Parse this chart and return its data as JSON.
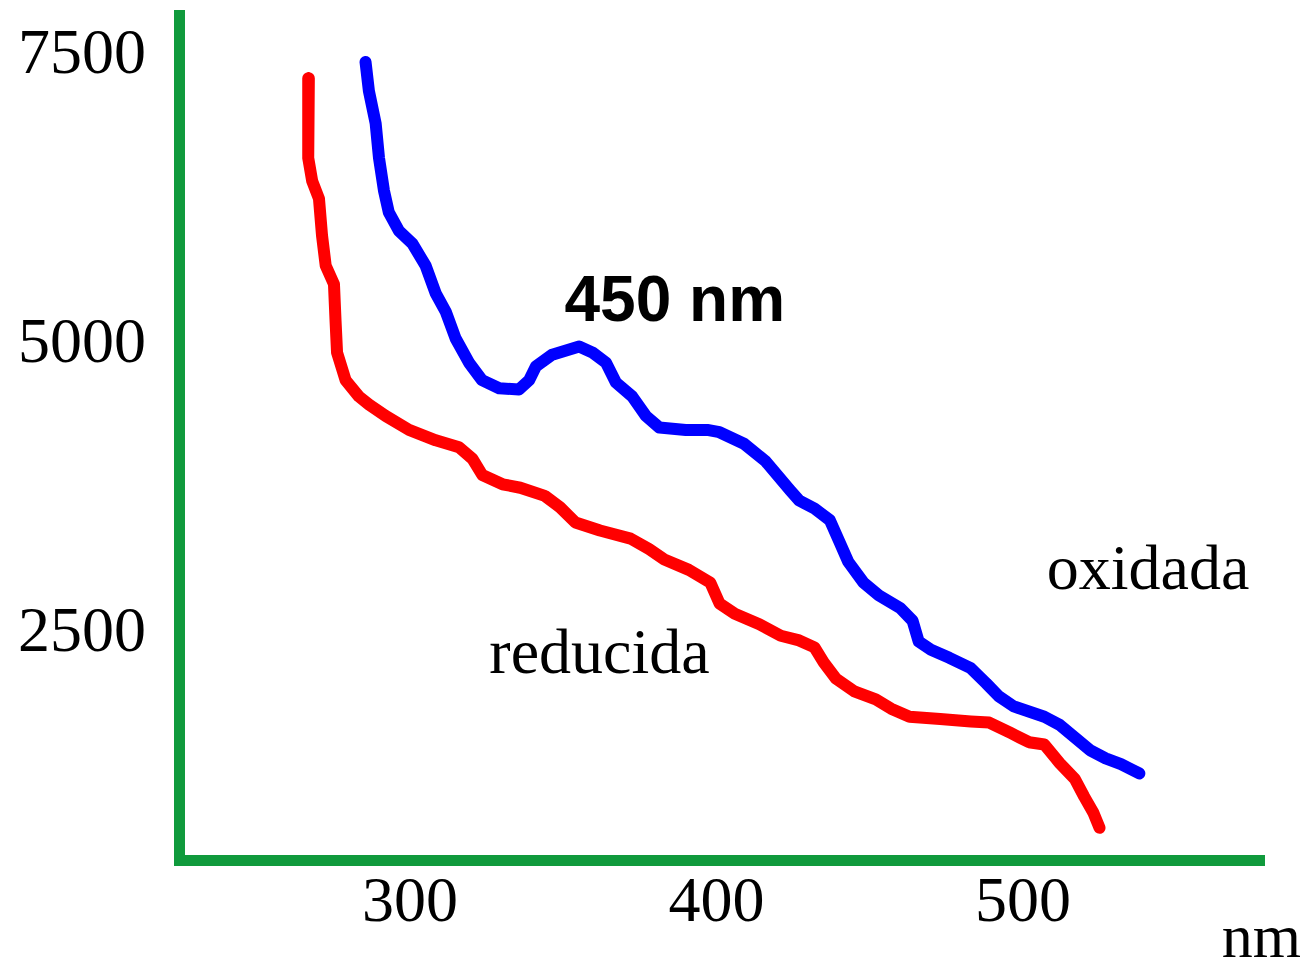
{
  "chart_data": {
    "type": "line",
    "xlabel": "nm",
    "xlim": [
      223,
      579
    ],
    "xticks": [
      300,
      400,
      500
    ],
    "ylim": [
      500,
      7900
    ],
    "yticks": [
      2500,
      5000,
      7500
    ],
    "marker": "none",
    "annotations": [
      {
        "text": "450 nm",
        "x": 355,
        "y": 4990
      }
    ],
    "series": [
      {
        "name": "oxidada",
        "color": "#0000ff",
        "x": [
          285.5,
          286.6,
          288.8,
          289.9,
          291.5,
          293.1,
          296.4,
          300.8,
          305.1,
          308.4,
          311.7,
          314.9,
          319.3,
          323.5,
          329.1,
          335.6,
          338.9,
          341.1,
          346.4,
          355.2,
          359.5,
          364.0,
          367.2,
          372.5,
          377.0,
          381.4,
          390,
          397,
          401,
          409,
          416,
          424,
          427,
          432,
          437,
          440,
          443,
          448,
          453,
          460,
          464,
          466,
          470,
          476,
          483,
          488,
          492,
          497,
          507,
          512,
          517,
          522,
          527,
          532,
          538
        ],
        "values": [
          7450,
          7200,
          6920,
          6620,
          6340,
          6150,
          5990,
          5880,
          5690,
          5450,
          5290,
          5060,
          4850,
          4700,
          4630,
          4620,
          4700,
          4820,
          4920,
          4990,
          4940,
          4850,
          4680,
          4560,
          4390,
          4290,
          4270,
          4270,
          4250,
          4150,
          4000,
          3750,
          3660,
          3590,
          3490,
          3310,
          3130,
          2950,
          2840,
          2730,
          2620,
          2440,
          2370,
          2300,
          2210,
          2080,
          1970,
          1880,
          1790,
          1720,
          1610,
          1500,
          1430,
          1380,
          1300
        ]
      },
      {
        "name": "reducida",
        "color": "#ff0000",
        "x": [
          267.0,
          266.8,
          268.1,
          270.3,
          271.3,
          272.5,
          275.2,
          275.7,
          276.2,
          279.0,
          283.3,
          286.6,
          292.1,
          299.7,
          308.4,
          316.0,
          320.4,
          323.6,
          330.2,
          336,
          344,
          349,
          354,
          362,
          372,
          378,
          383,
          391,
          398,
          401,
          406,
          414,
          421,
          427,
          432,
          435,
          439,
          445,
          452,
          457,
          463,
          473,
          483,
          489,
          496,
          502,
          507,
          512,
          517,
          520,
          523,
          525
        ],
        "values": [
          7310,
          6620,
          6420,
          6270,
          5950,
          5690,
          5530,
          5220,
          4940,
          4700,
          4560,
          4490,
          4390,
          4270,
          4180,
          4120,
          4020,
          3880,
          3800,
          3770,
          3700,
          3600,
          3470,
          3400,
          3330,
          3240,
          3150,
          3060,
          2950,
          2770,
          2680,
          2590,
          2490,
          2450,
          2390,
          2260,
          2120,
          2010,
          1940,
          1860,
          1790,
          1770,
          1750,
          1740,
          1650,
          1570,
          1550,
          1390,
          1250,
          1100,
          960,
          830
        ]
      }
    ]
  }
}
